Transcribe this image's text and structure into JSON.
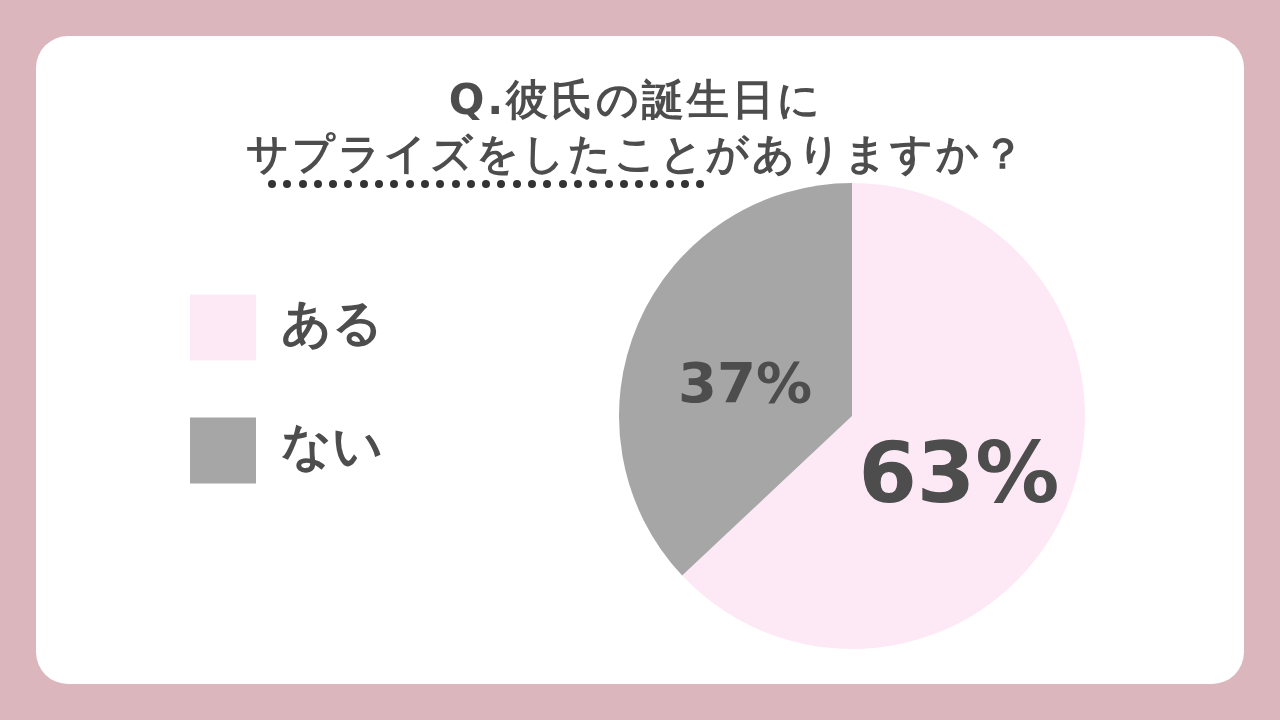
{
  "chart_data": {
    "type": "pie",
    "title": "Q.彼氏の誕生日に",
    "subtitle": "サプライズをしたことがありますか？",
    "categories": [
      "ある",
      "ない"
    ],
    "values": [
      63,
      37
    ],
    "colors": [
      "#fde9f5",
      "#a6a6a6"
    ],
    "value_labels": [
      "63%",
      "37%"
    ],
    "legend": "left"
  }
}
